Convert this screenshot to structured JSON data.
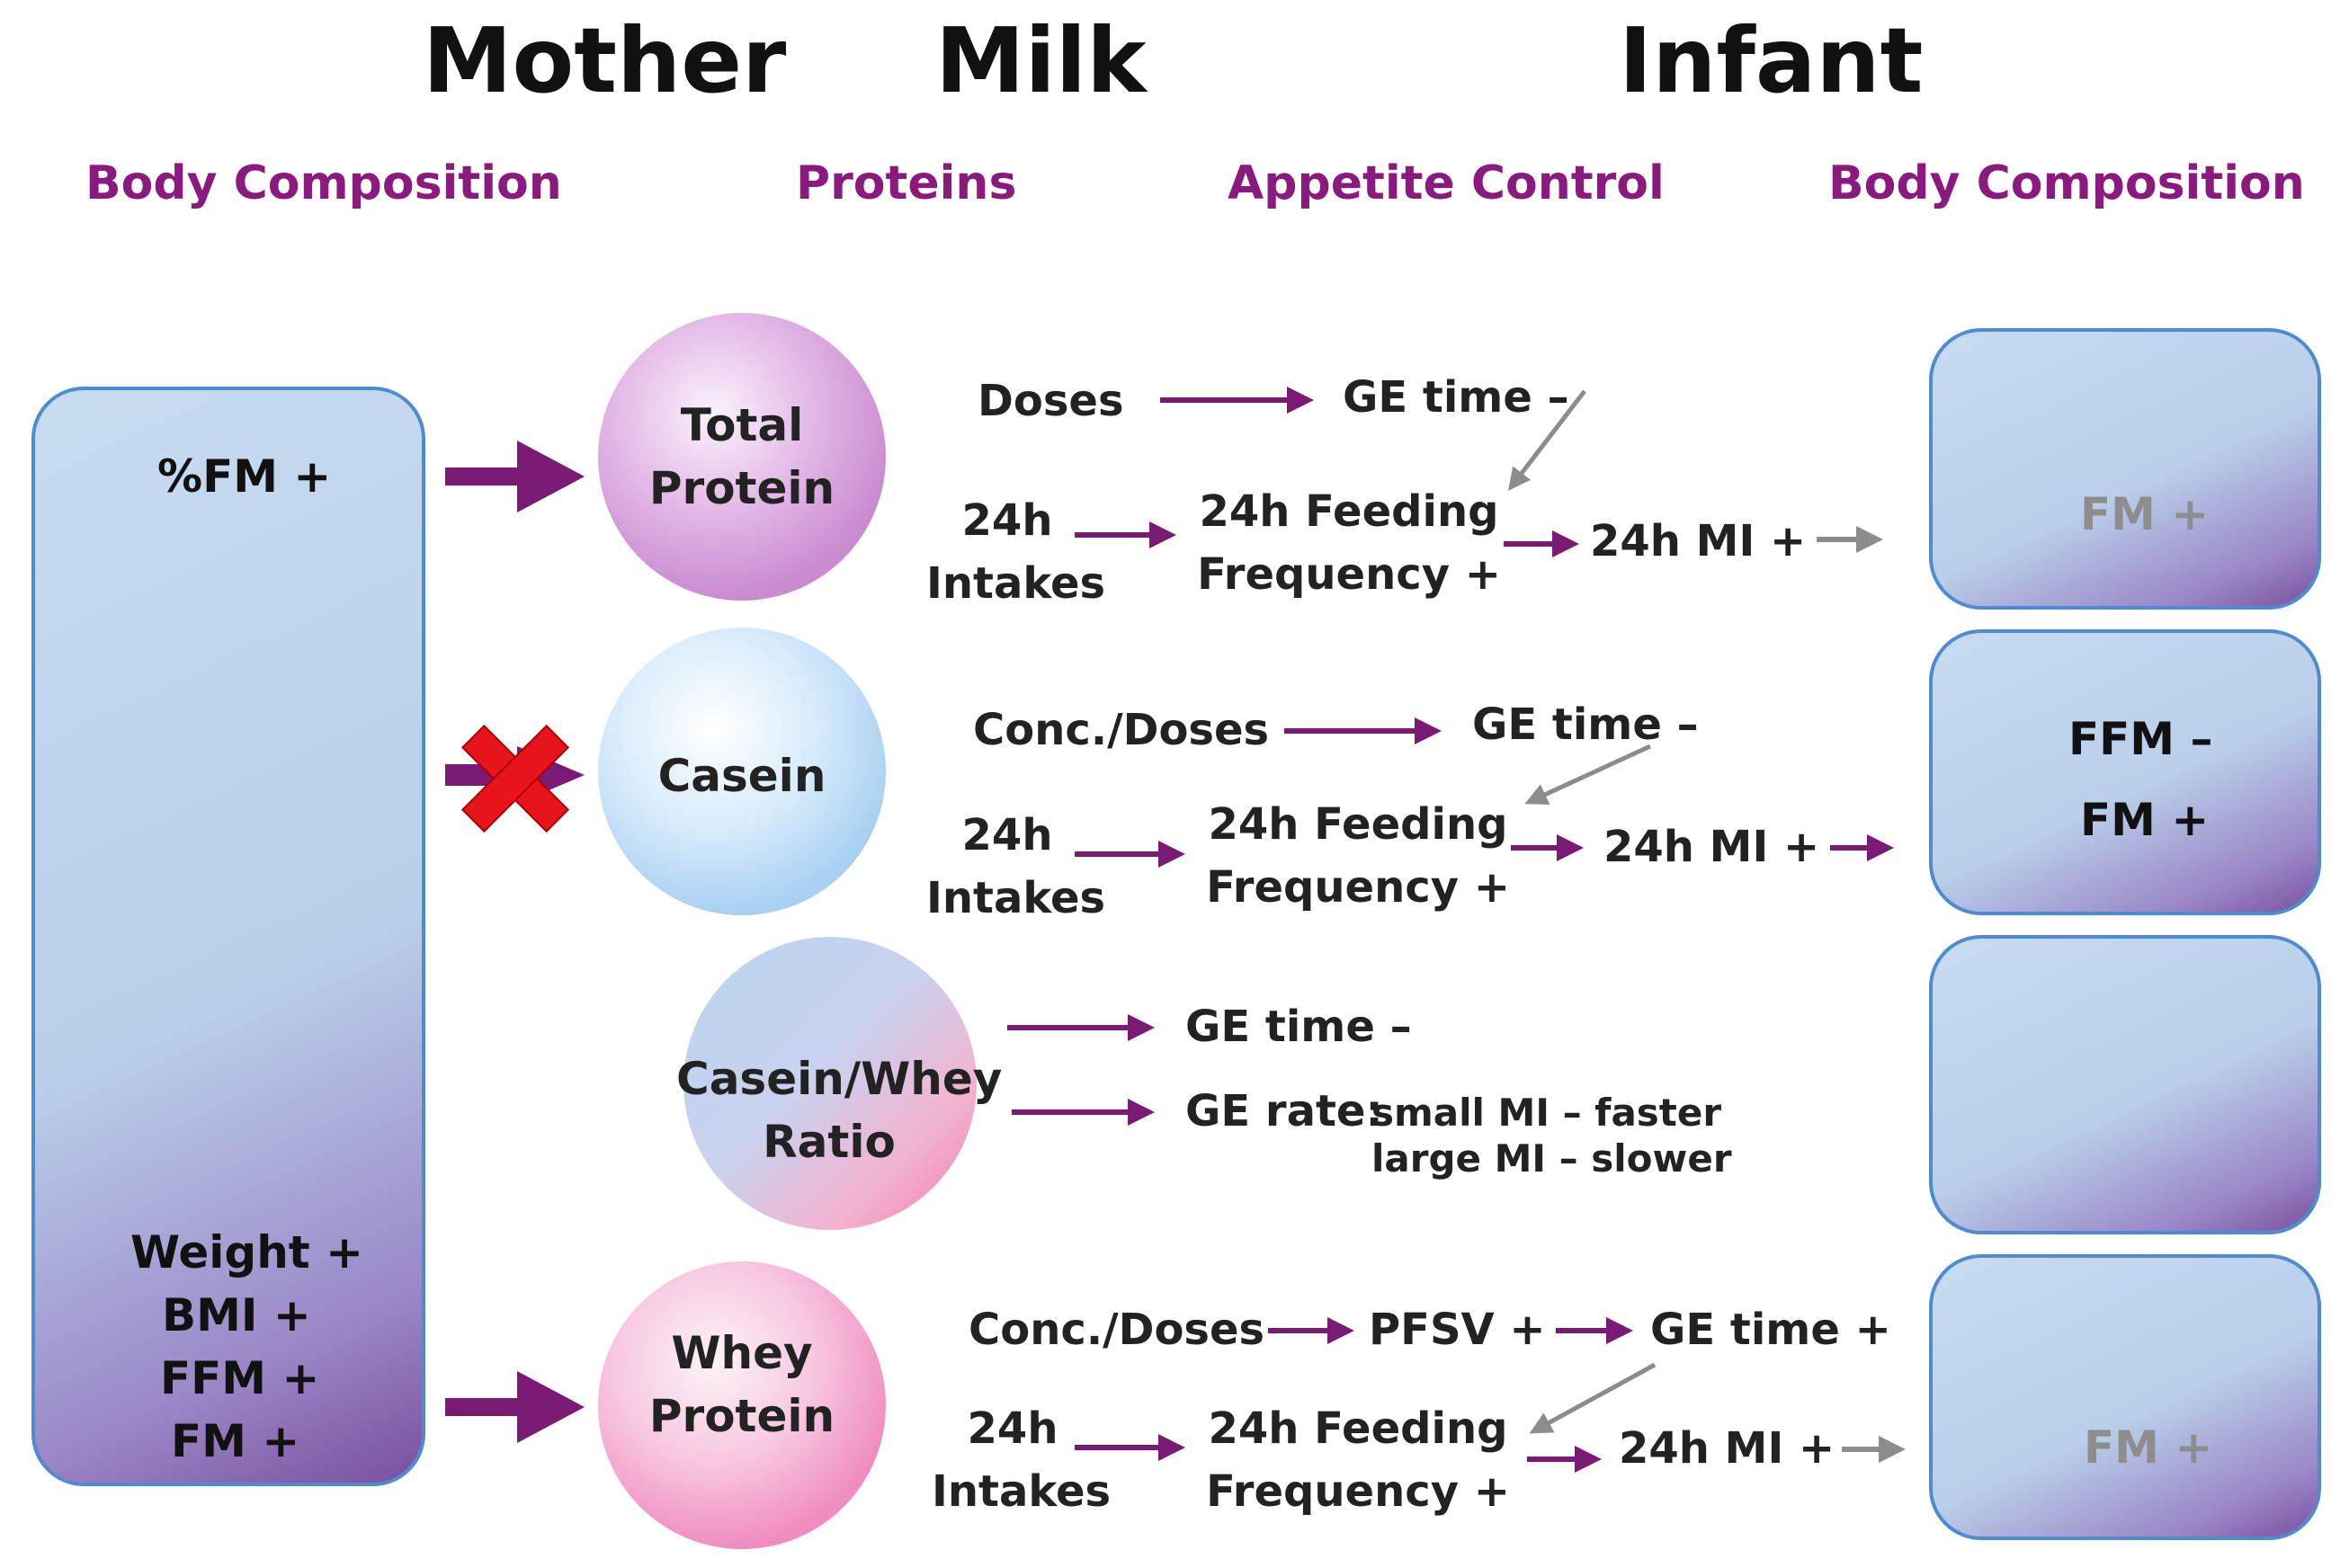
{
  "headers": {
    "mother": "Mother",
    "milk": "Milk",
    "infant": "Infant"
  },
  "subheaders": {
    "mother_body": "Body Composition",
    "proteins": "Proteins",
    "appetite": "Appetite Control",
    "infant_body": "Body Composition"
  },
  "mother_box": {
    "top": "%FM +",
    "bottom": [
      "Weight +",
      "BMI +",
      "FFM +",
      "FM +"
    ]
  },
  "proteins": {
    "total": [
      "Total",
      "Protein"
    ],
    "casein": "Casein",
    "ratio": [
      "Casein/Whey",
      "Ratio"
    ],
    "whey": [
      "Whey",
      "Protein"
    ]
  },
  "row_total": {
    "doses": "Doses",
    "ge_time": "GE time –",
    "intakes": [
      "24h",
      "Intakes"
    ],
    "feeding": [
      "24h Feeding",
      "Frequency +"
    ],
    "mi": "24h MI +"
  },
  "row_casein": {
    "conc": "Conc./Doses",
    "ge_time": "GE time –",
    "intakes": [
      "24h",
      "Intakes"
    ],
    "feeding": [
      "24h Feeding",
      "Frequency +"
    ],
    "mi": "24h MI +"
  },
  "row_ratio": {
    "ge_time": "GE time –",
    "ge_rate": "GE rate:",
    "small": "small MI – faster",
    "large": "large MI – slower"
  },
  "row_whey": {
    "conc": "Conc./Doses",
    "pfsv": "PFSV +",
    "ge_time": "GE time +",
    "intakes": [
      "24h",
      "Intakes"
    ],
    "feeding": [
      "24h Feeding",
      "Frequency +"
    ],
    "mi": "24h MI +"
  },
  "infant_boxes": {
    "box1": "FM +",
    "box2": [
      "FFM –",
      "FM +"
    ],
    "box3": "",
    "box4": "FM +"
  },
  "colors": {
    "purple_arrow": "#7b1a74",
    "grey_arrow": "#8c8c8c",
    "subheader": "#8a1a7e",
    "cross": "#e8141b"
  },
  "icons": {
    "blocked": "red-x-icon"
  }
}
